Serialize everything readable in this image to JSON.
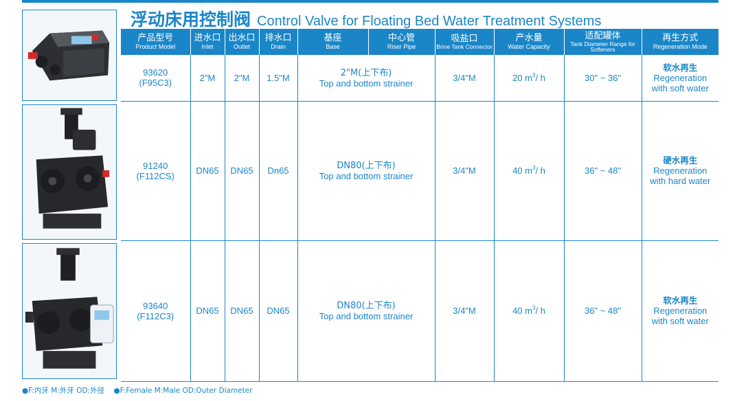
{
  "title": {
    "cn": "浮动床用控制阀",
    "en": "Control Valve for Floating Bed  Water Treatment Systems"
  },
  "columns": [
    {
      "cn": "产品型号",
      "en": "Product Model"
    },
    {
      "cn": "进水口",
      "en": "Inlet"
    },
    {
      "cn": "出水口",
      "en": "Outlet"
    },
    {
      "cn": "排水口",
      "en": "Drain"
    },
    {
      "cn": "基座",
      "en": "Base"
    },
    {
      "cn": "中心管",
      "en": "Riser Pipe"
    },
    {
      "cn": "吸盐口",
      "en": "Brine Tank Connector"
    },
    {
      "cn": "产水量",
      "en": "Water Capacity"
    },
    {
      "cn": "适配罐体",
      "en": "Tank Diameter Range for Softeners"
    },
    {
      "cn": "再生方式",
      "en": "Regeneration Mode"
    }
  ],
  "rows": [
    {
      "model": "93620",
      "code": "(F95C3)",
      "inlet": "2\"M",
      "outlet": "2\"M",
      "drain": "1.5\"M",
      "base_cn": "2\"M(上下布)",
      "base_en": "Top and bottom strainer",
      "brine": "3/4\"M",
      "capacity_value": "20 m",
      "capacity_sup": "3",
      "capacity_unit": "/ h",
      "tank": "30\" ~ 36\"",
      "mode_cn": "软水再生",
      "mode_en1": "Regeneration",
      "mode_en2": "with soft water"
    },
    {
      "model": "91240",
      "code": "(F112CS)",
      "inlet": "DN65",
      "outlet": "DN65",
      "drain": "Dn65",
      "base_cn": "DN80(上下布)",
      "base_en": "Top and bottom strainer",
      "brine": "3/4\"M",
      "capacity_value": "40 m",
      "capacity_sup": "3",
      "capacity_unit": "/ h",
      "tank": "36\" ~ 48\"",
      "mode_cn": "硬水再生",
      "mode_en1": "Regeneration",
      "mode_en2": "with hard water"
    },
    {
      "model": "93640",
      "code": "(F112C3)",
      "inlet": "DN65",
      "outlet": "DN65",
      "drain": "DN65",
      "base_cn": "DN80(上下布)",
      "base_en": "Top and bottom strainer",
      "brine": "3/4\"M",
      "capacity_value": "40 m",
      "capacity_sup": "3",
      "capacity_unit": "/ h",
      "tank": "36\" ~ 48\"",
      "mode_cn": "软水再生",
      "mode_en1": "Regeneration",
      "mode_en2": "with soft water"
    }
  ],
  "footnote": {
    "cn": "●F:内牙  M:外牙  OD:外径",
    "en": "●F:Female   M:Male   OD:Outer Diameter"
  },
  "colors": {
    "accent": "#1a86c8",
    "header_text": "#ffffff"
  }
}
